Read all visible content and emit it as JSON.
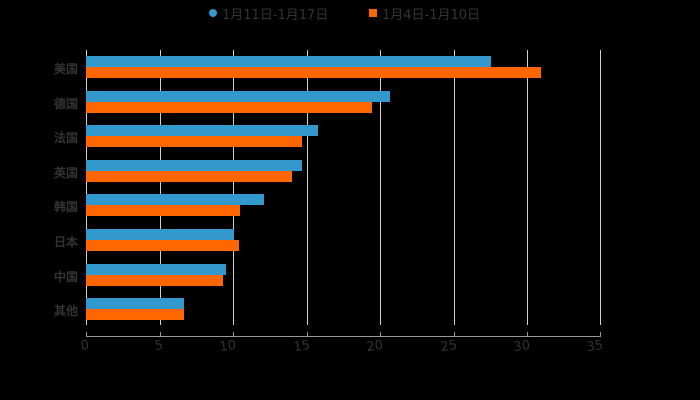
{
  "chart_data": {
    "type": "bar",
    "orientation": "horizontal",
    "title": "",
    "xlabel": "",
    "ylabel": "",
    "categories": [
      "美国",
      "德国",
      "法国",
      "英国",
      "韩国",
      "日本",
      "中国",
      "其他"
    ],
    "series": [
      {
        "name": "1月11日-1月17日",
        "color": "#3399cc",
        "marker": "circle",
        "values": [
          27.6,
          20.7,
          15.8,
          14.7,
          12.1,
          10.1,
          9.5,
          6.7
        ]
      },
      {
        "name": "1月4日-1月10日",
        "color": "#ff6600",
        "marker": "square",
        "values": [
          31.0,
          19.5,
          14.7,
          14.0,
          10.5,
          10.4,
          9.3,
          6.7
        ]
      }
    ],
    "xlim": [
      0,
      35
    ],
    "xticks": [
      "0",
      "5",
      "10",
      "15",
      "20",
      "25",
      "30",
      "35"
    ],
    "grid": true,
    "legend_position": "top"
  },
  "legend": {
    "items": [
      {
        "label": "1月11日-1月17日",
        "color": "#3399cc"
      },
      {
        "label": "1月4日-1月10日",
        "color": "#ff6600"
      }
    ]
  },
  "colors": {
    "background": "#000000",
    "text": "#333333",
    "grid": "#cfcfcf"
  }
}
